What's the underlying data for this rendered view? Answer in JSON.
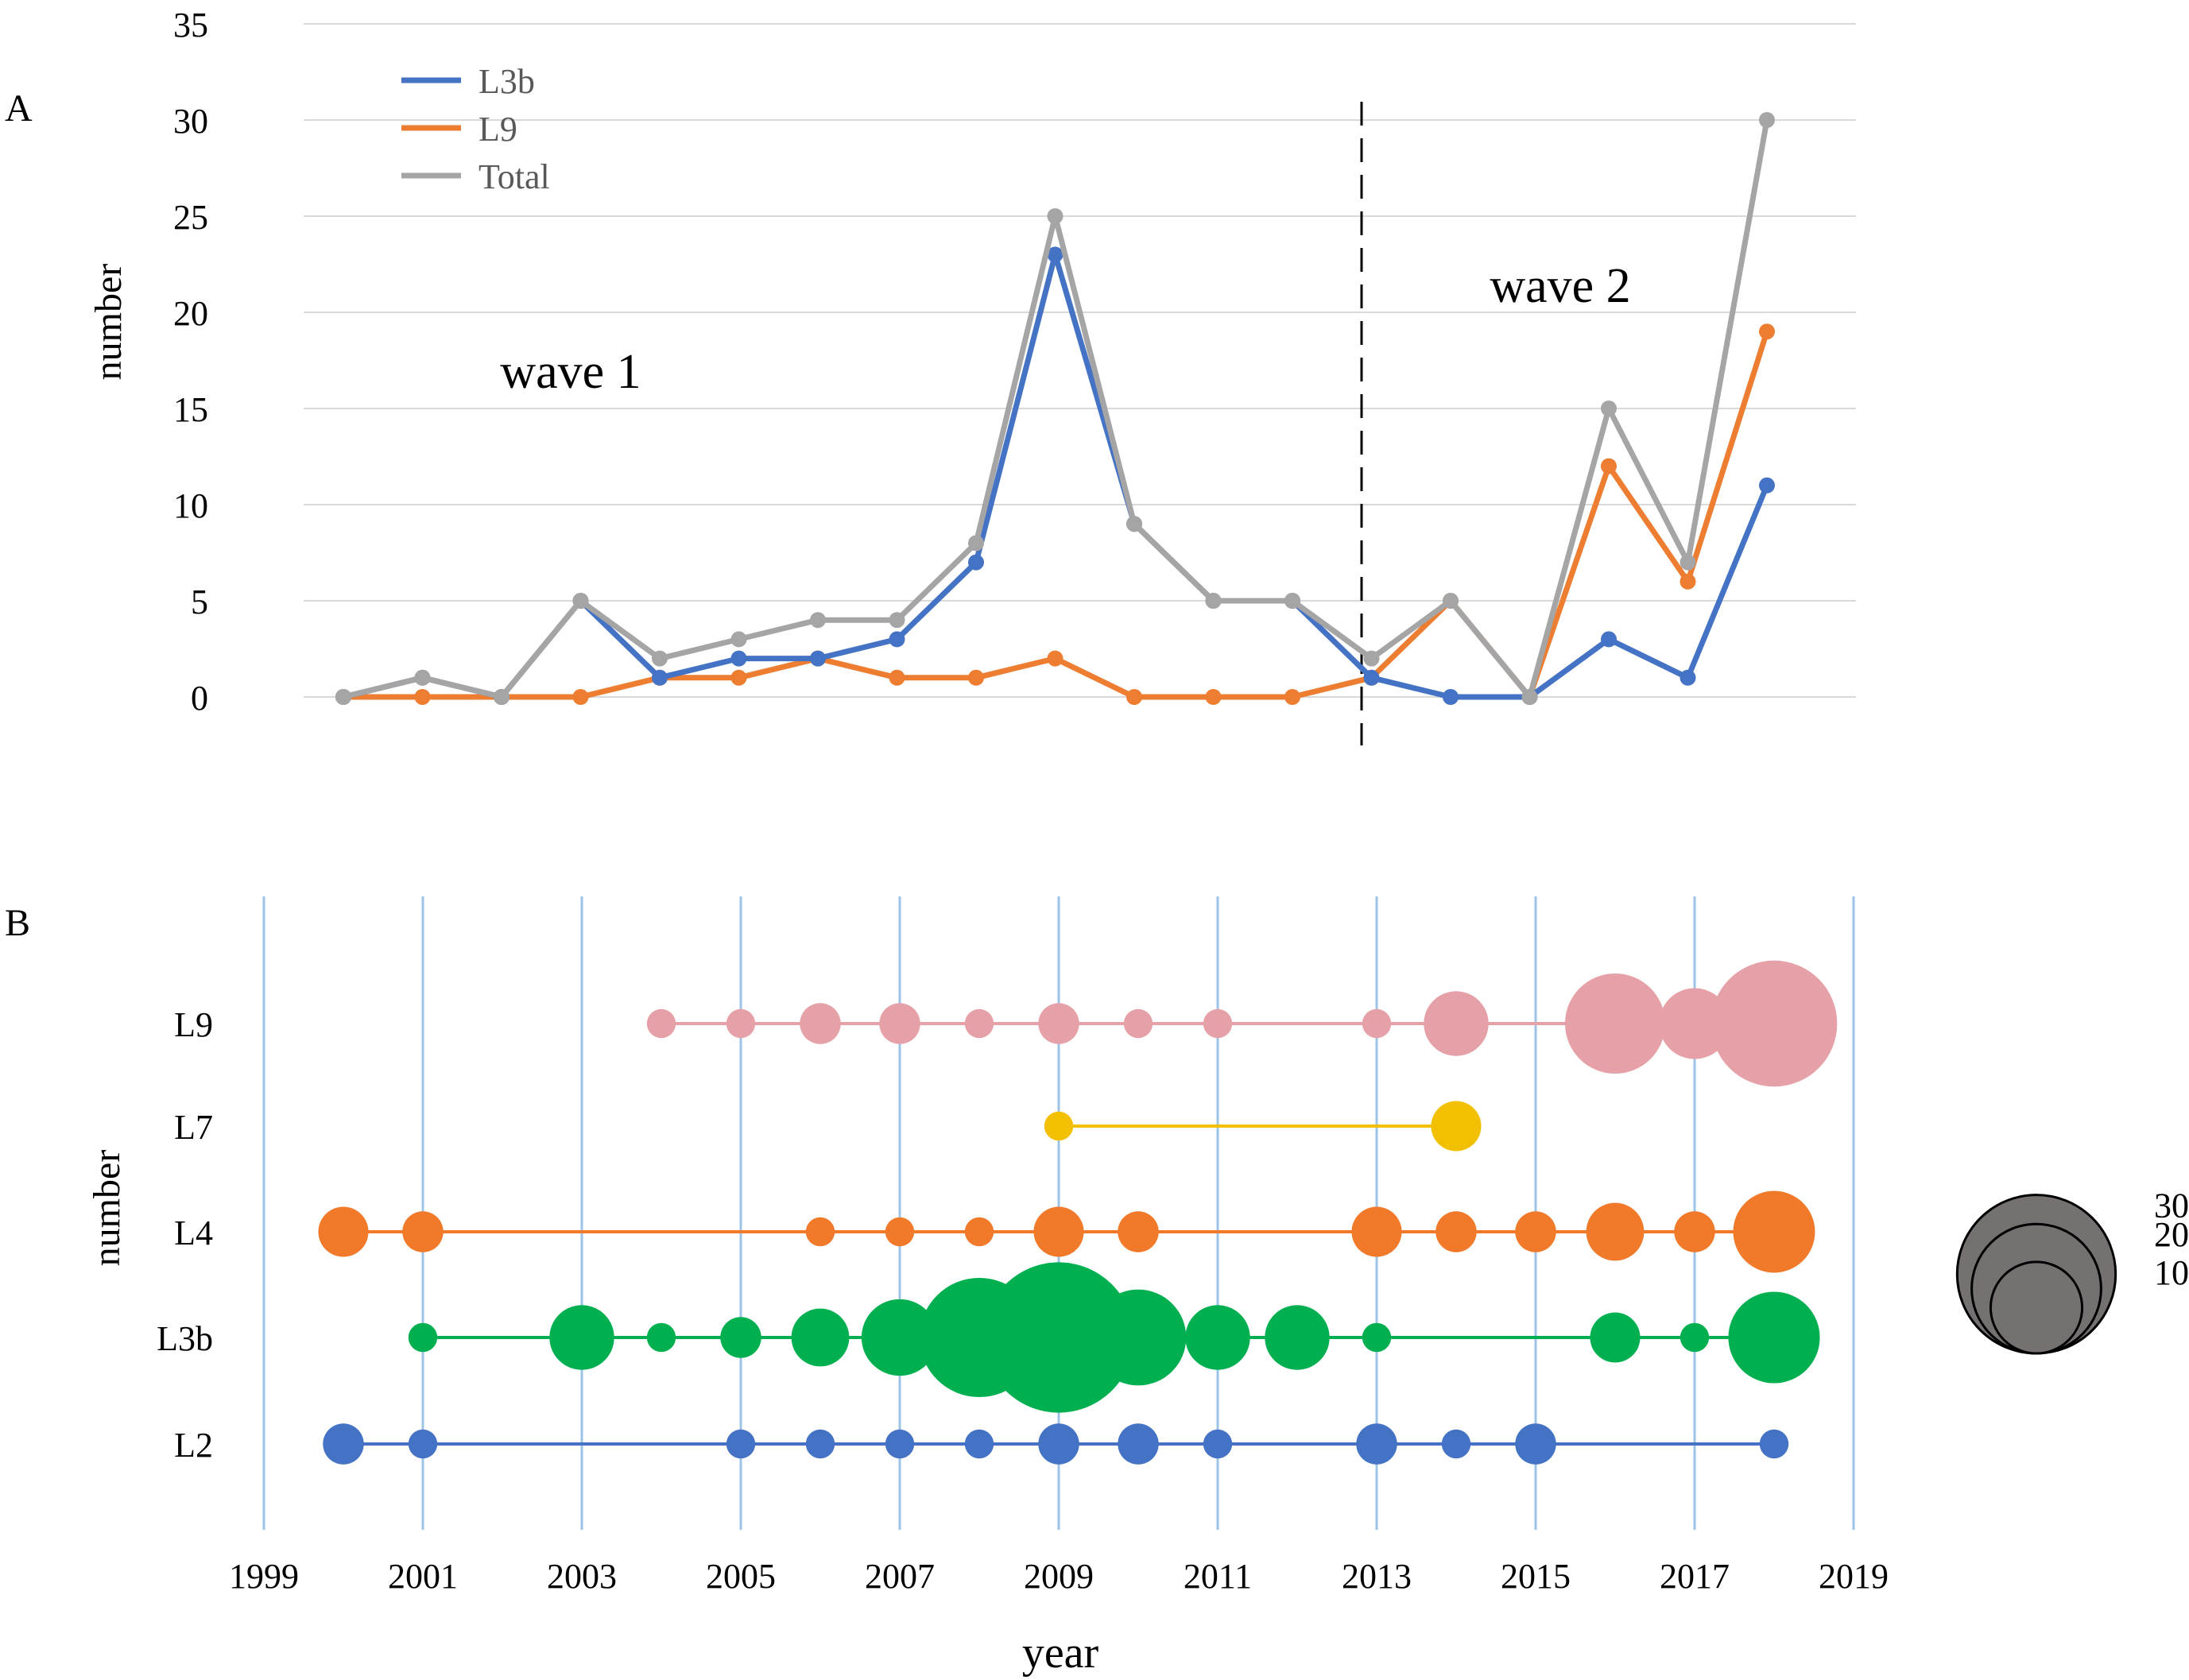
{
  "chart_data": [
    {
      "panel": "A",
      "type": "line",
      "ylabel": "number",
      "ylim": [
        0,
        35
      ],
      "yticks": [
        0,
        5,
        10,
        15,
        20,
        25,
        30,
        35
      ],
      "grid": true,
      "legend_position": "top-left",
      "divider_after": 2012,
      "annotations": [
        "wave 1",
        "wave 2"
      ],
      "x": [
        2000,
        2001,
        2002,
        2003,
        2004,
        2005,
        2006,
        2007,
        2008,
        2009,
        2010,
        2011,
        2012,
        2013,
        2014,
        2015,
        2016,
        2017,
        2018
      ],
      "series": [
        {
          "name": "L3b",
          "color": "#4472c4",
          "values": [
            0,
            1,
            0,
            5,
            1,
            2,
            2,
            3,
            7,
            23,
            9,
            5,
            5,
            1,
            0,
            0,
            3,
            1,
            11
          ]
        },
        {
          "name": "L9",
          "color": "#ed7d31",
          "values": [
            0,
            0,
            0,
            0,
            1,
            1,
            2,
            1,
            1,
            2,
            0,
            0,
            0,
            1,
            5,
            0,
            12,
            6,
            19
          ]
        },
        {
          "name": "Total",
          "color": "#a5a5a5",
          "values": [
            0,
            1,
            0,
            5,
            2,
            3,
            4,
            4,
            8,
            25,
            9,
            5,
            5,
            2,
            5,
            0,
            15,
            7,
            30
          ]
        }
      ]
    },
    {
      "panel": "B",
      "type": "scatter",
      "xlabel": "year",
      "ylabel": "number",
      "xticks": [
        1999,
        2001,
        2003,
        2005,
        2007,
        2009,
        2011,
        2013,
        2015,
        2017,
        2019
      ],
      "xlim": [
        1999,
        2019
      ],
      "size_legend": [
        10,
        20,
        30
      ],
      "size_legend_color": "#767171",
      "series": [
        {
          "name": "L9",
          "color": "#e6a1a8",
          "points": [
            [
              2004,
              1
            ],
            [
              2005,
              1
            ],
            [
              2006,
              2
            ],
            [
              2007,
              2
            ],
            [
              2008,
              1
            ],
            [
              2009,
              2
            ],
            [
              2010,
              1
            ],
            [
              2011,
              1
            ],
            [
              2013,
              1
            ],
            [
              2014,
              5
            ],
            [
              2016,
              12
            ],
            [
              2017,
              6
            ],
            [
              2018,
              19
            ]
          ]
        },
        {
          "name": "L7",
          "color": "#f2c000",
          "points": [
            [
              2009,
              1
            ],
            [
              2014,
              3
            ]
          ]
        },
        {
          "name": "L4",
          "color": "#f07a2a",
          "points": [
            [
              2000,
              3
            ],
            [
              2001,
              2
            ],
            [
              2006,
              1
            ],
            [
              2007,
              1
            ],
            [
              2008,
              1
            ],
            [
              2009,
              3
            ],
            [
              2010,
              2
            ],
            [
              2013,
              3
            ],
            [
              2014,
              2
            ],
            [
              2015,
              2
            ],
            [
              2016,
              4
            ],
            [
              2017,
              2
            ],
            [
              2018,
              8
            ]
          ]
        },
        {
          "name": "L3b",
          "color": "#00b050",
          "points": [
            [
              2001,
              1
            ],
            [
              2003,
              5
            ],
            [
              2004,
              1
            ],
            [
              2005,
              2
            ],
            [
              2006,
              4
            ],
            [
              2007,
              7
            ],
            [
              2008,
              17
            ],
            [
              2009,
              27
            ],
            [
              2010,
              11
            ],
            [
              2011,
              5
            ],
            [
              2012,
              5
            ],
            [
              2013,
              1
            ],
            [
              2016,
              3
            ],
            [
              2017,
              1
            ],
            [
              2018,
              10
            ]
          ]
        },
        {
          "name": "L2",
          "color": "#4472c4",
          "points": [
            [
              2000,
              2
            ],
            [
              2001,
              1
            ],
            [
              2005,
              1
            ],
            [
              2006,
              1
            ],
            [
              2007,
              1
            ],
            [
              2008,
              1
            ],
            [
              2009,
              2
            ],
            [
              2010,
              2
            ],
            [
              2011,
              1
            ],
            [
              2013,
              2
            ],
            [
              2014,
              1
            ],
            [
              2015,
              2
            ],
            [
              2018,
              1
            ]
          ]
        }
      ]
    }
  ],
  "labels": {
    "panel_a": "A",
    "panel_b": "B",
    "a_ylabel": "number",
    "b_ylabel": "number",
    "b_xlabel": "year",
    "wave1": "wave 1",
    "wave2": "wave 2"
  }
}
